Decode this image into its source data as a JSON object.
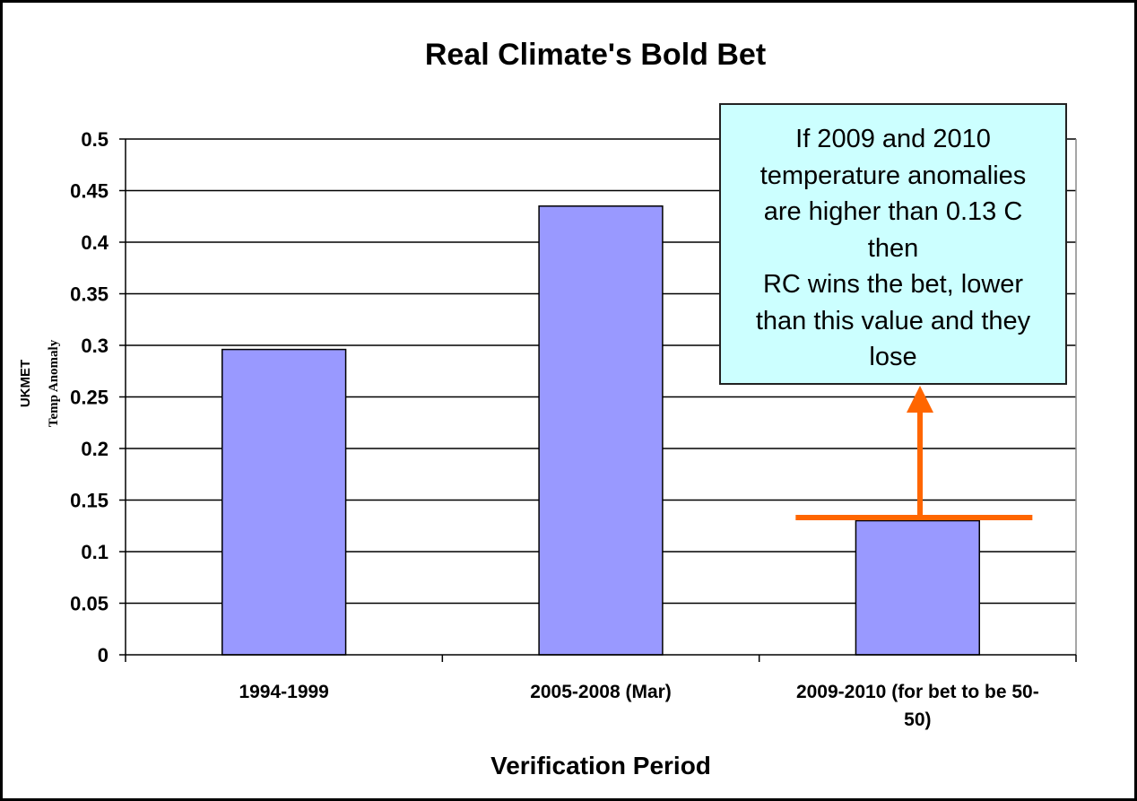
{
  "chart_data": {
    "type": "bar",
    "title": "Real Climate's Bold Bet",
    "xlabel": "Verification Period",
    "ylabel": [
      "UKMET",
      "Temp Anomaly"
    ],
    "categories": [
      [
        "1994-1999"
      ],
      [
        "2005-2008 (Mar)"
      ],
      [
        "2009-2010 (for bet to be 50-",
        "50)"
      ]
    ],
    "values": [
      0.296,
      0.435,
      0.13
    ],
    "ylim": [
      0,
      0.5
    ],
    "yticks": [
      "0",
      "0.05",
      "0.1",
      "0.15",
      "0.2",
      "0.25",
      "0.3",
      "0.35",
      "0.4",
      "0.45",
      "0.5"
    ],
    "grid": true,
    "bar_color": "#9999ff",
    "threshold": {
      "value": 0.133,
      "color": "#ff6600"
    },
    "annotation": "If 2009 and 2010\ntemperature anomalies\nare higher than 0.13 C\nthen\n RC wins the bet, lower\nthan this value and they\nlose",
    "annotation_bg": "#ccffff"
  }
}
